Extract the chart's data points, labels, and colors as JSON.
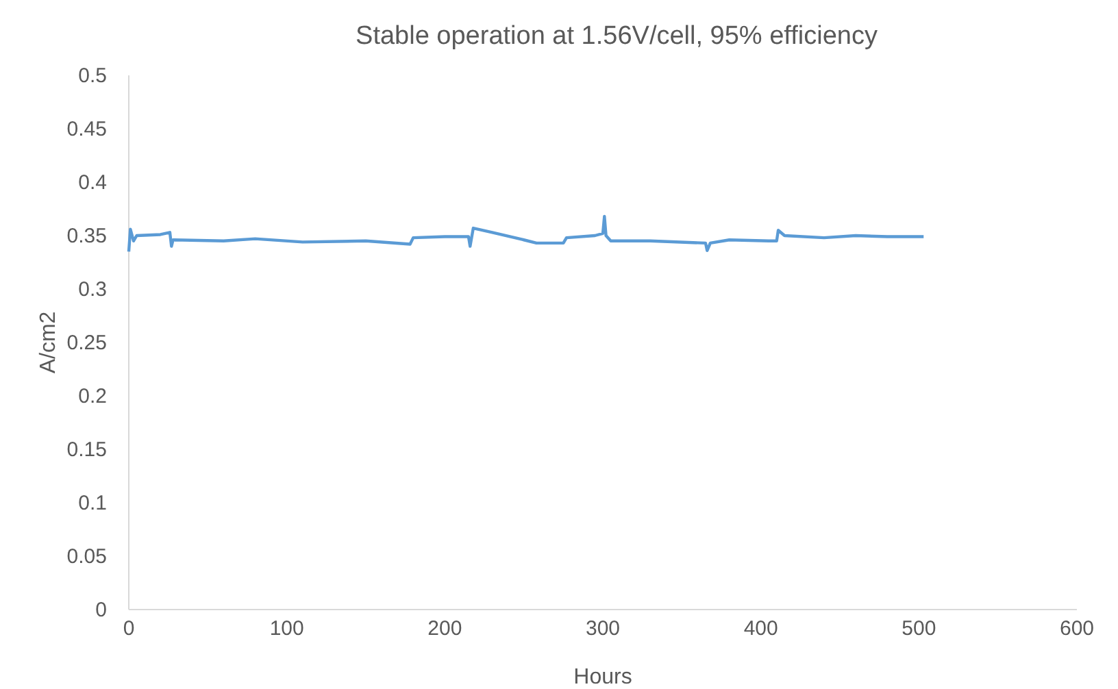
{
  "chart_data": {
    "type": "line",
    "title": "Stable operation at 1.56V/cell, 95% efficiency",
    "xlabel": "Hours",
    "ylabel": "A/cm2",
    "x": [
      0,
      1,
      3,
      5,
      20,
      26,
      27,
      28,
      60,
      80,
      110,
      150,
      178,
      180,
      200,
      215,
      216,
      218,
      230,
      250,
      258,
      275,
      277,
      295,
      300,
      301,
      302,
      305,
      330,
      365,
      366,
      368,
      380,
      405,
      410,
      411,
      415,
      440,
      460,
      480,
      503
    ],
    "series": [
      {
        "color": "#5b9bd5",
        "values": [
          0.335,
          0.356,
          0.345,
          0.35,
          0.351,
          0.353,
          0.34,
          0.346,
          0.345,
          0.347,
          0.344,
          0.345,
          0.342,
          0.348,
          0.349,
          0.349,
          0.34,
          0.357,
          0.353,
          0.346,
          0.343,
          0.343,
          0.348,
          0.35,
          0.352,
          0.368,
          0.35,
          0.345,
          0.345,
          0.343,
          0.336,
          0.343,
          0.346,
          0.345,
          0.345,
          0.355,
          0.35,
          0.348,
          0.35,
          0.349,
          0.349
        ]
      }
    ],
    "xlim": [
      0,
      600
    ],
    "xticks": [
      0,
      100,
      200,
      300,
      400,
      500,
      600
    ],
    "ylim": [
      0,
      0.5
    ],
    "yticks": [
      0,
      0.05,
      0.1,
      0.15,
      0.2,
      0.25,
      0.3,
      0.35,
      0.4,
      0.45,
      0.5
    ],
    "grid": false,
    "marker": "none",
    "line_style": "solid"
  }
}
